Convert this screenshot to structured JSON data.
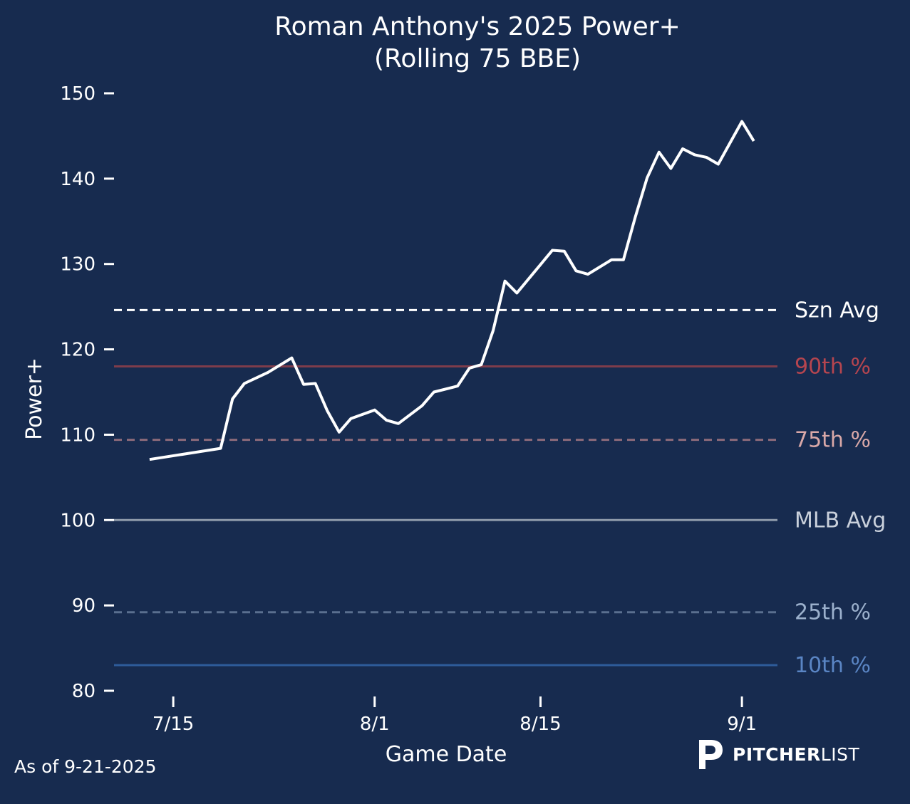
{
  "chart_data": {
    "type": "line",
    "title": "Roman Anthony's 2025 Power+",
    "subtitle": "(Rolling 75 BBE)",
    "xlabel": "Game Date",
    "ylabel": "Power+",
    "ylim": [
      80,
      150
    ],
    "yticks": [
      80,
      90,
      100,
      110,
      120,
      130,
      140,
      150
    ],
    "xlim": [
      "2025-07-10",
      "2025-09-04"
    ],
    "xticks": [
      {
        "date": "2025-07-15",
        "label": "7/15"
      },
      {
        "date": "2025-08-01",
        "label": "8/1"
      },
      {
        "date": "2025-08-15",
        "label": "8/15"
      },
      {
        "date": "2025-09-01",
        "label": "9/1"
      }
    ],
    "grid": false,
    "series": [
      {
        "color": "#ffffff",
        "points": [
          [
            "2025-07-13",
            107.1
          ],
          [
            "2025-07-19",
            108.4
          ],
          [
            "2025-07-20",
            114.2
          ],
          [
            "2025-07-21",
            116.0
          ],
          [
            "2025-07-23",
            117.3
          ],
          [
            "2025-07-25",
            119.0
          ],
          [
            "2025-07-26",
            115.9
          ],
          [
            "2025-07-27",
            116.0
          ],
          [
            "2025-07-28",
            112.8
          ],
          [
            "2025-07-29",
            110.3
          ],
          [
            "2025-07-30",
            111.9
          ],
          [
            "2025-07-31",
            112.4
          ],
          [
            "2025-08-01",
            112.9
          ],
          [
            "2025-08-02",
            111.7
          ],
          [
            "2025-08-03",
            111.3
          ],
          [
            "2025-08-05",
            113.4
          ],
          [
            "2025-08-06",
            115.0
          ],
          [
            "2025-08-08",
            115.7
          ],
          [
            "2025-08-09",
            117.8
          ],
          [
            "2025-08-10",
            118.2
          ],
          [
            "2025-08-11",
            122.2
          ],
          [
            "2025-08-12",
            128.0
          ],
          [
            "2025-08-13",
            126.6
          ],
          [
            "2025-08-16",
            131.6
          ],
          [
            "2025-08-17",
            131.5
          ],
          [
            "2025-08-18",
            129.2
          ],
          [
            "2025-08-19",
            128.8
          ],
          [
            "2025-08-21",
            130.5
          ],
          [
            "2025-08-22",
            130.5
          ],
          [
            "2025-08-23",
            135.5
          ],
          [
            "2025-08-24",
            140.1
          ],
          [
            "2025-08-25",
            143.1
          ],
          [
            "2025-08-26",
            141.2
          ],
          [
            "2025-08-27",
            143.5
          ],
          [
            "2025-08-28",
            142.8
          ],
          [
            "2025-08-29",
            142.5
          ],
          [
            "2025-08-30",
            141.7
          ],
          [
            "2025-09-01",
            146.7
          ],
          [
            "2025-09-02",
            144.4
          ]
        ]
      }
    ],
    "reference_lines": [
      {
        "label": "Szn Avg",
        "value": 124.6,
        "color": "#ffffff",
        "label_color": "#ffffff",
        "dashed": true
      },
      {
        "label": "90th %",
        "value": 118.0,
        "color": "#7e3c4b",
        "label_color": "#b5454f",
        "dashed": false
      },
      {
        "label": "75th %",
        "value": 109.4,
        "color": "#8c6b7a",
        "label_color": "#d9a8a8",
        "dashed": true
      },
      {
        "label": "MLB Avg",
        "value": 100,
        "color": "#8e9aaa",
        "label_color": "#c9d0db",
        "dashed": false
      },
      {
        "label": "25th %",
        "value": 89.2,
        "color": "#5a6f8f",
        "label_color": "#9bb0cc",
        "dashed": true
      },
      {
        "label": "10th %",
        "value": 83.0,
        "color": "#2e5b9a",
        "label_color": "#5a85c4",
        "dashed": false
      }
    ],
    "annotations": [
      "As of 9-21-2025"
    ]
  },
  "footer": {
    "as_of": "As of 9-21-2025",
    "logo_bold": "PITCHER",
    "logo_light": "LIST"
  },
  "colors": {
    "background": "#172b4f"
  }
}
